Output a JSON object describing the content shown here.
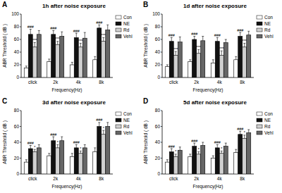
{
  "chart_data": [
    {
      "type": "bar",
      "panel_label": "A",
      "title": "1h after noise exposure",
      "x_label": "Frequency(Hz)",
      "y_label": "ABR Threshold ( dB )",
      "categories": [
        "click",
        "2k",
        "4k",
        "8k"
      ],
      "ylim": [
        0,
        100
      ],
      "yticks": [
        0,
        20,
        40,
        60,
        80,
        100
      ],
      "grid": false,
      "legend": "right",
      "series": [
        {
          "name": "Con",
          "color": "#ffffff",
          "values": [
            15,
            25,
            20,
            28
          ],
          "errors": [
            3,
            4,
            4,
            5
          ]
        },
        {
          "name": "NE",
          "color": "#111111",
          "values": [
            68,
            68,
            63,
            78
          ],
          "errors": [
            8,
            6,
            7,
            5
          ]
        },
        {
          "name": "Rd",
          "color": "#d0d0d0",
          "values": [
            48,
            52,
            48,
            57
          ],
          "errors": [
            7,
            5,
            6,
            6
          ]
        },
        {
          "name": "Vehl",
          "color": "#666666",
          "values": [
            68,
            65,
            62,
            75
          ],
          "errors": [
            6,
            7,
            9,
            8
          ]
        }
      ],
      "annotations": [
        {
          "category": "click",
          "series": "NE",
          "text": "###"
        },
        {
          "category": "click",
          "series": "Rd",
          "text": "***"
        },
        {
          "category": "2k",
          "series": "NE",
          "text": "###"
        },
        {
          "category": "2k",
          "series": "Rd",
          "text": "***"
        },
        {
          "category": "4k",
          "series": "NE",
          "text": "###"
        },
        {
          "category": "4k",
          "series": "Rd",
          "text": "***"
        },
        {
          "category": "8k",
          "series": "NE",
          "text": "###"
        },
        {
          "category": "8k",
          "series": "Rd",
          "text": "***"
        }
      ]
    },
    {
      "type": "bar",
      "panel_label": "B",
      "title": "1d after noise exposure",
      "x_label": "Frequency(Hz)",
      "y_label": "ABR Threshold ( dB )",
      "categories": [
        "click",
        "2k",
        "4k",
        "8k"
      ],
      "ylim": [
        0,
        100
      ],
      "yticks": [
        0,
        20,
        40,
        60,
        80,
        100
      ],
      "grid": false,
      "legend": "right",
      "series": [
        {
          "name": "Con",
          "color": "#ffffff",
          "values": [
            17,
            25,
            23,
            28
          ],
          "errors": [
            3,
            3,
            5,
            5
          ]
        },
        {
          "name": "NE",
          "color": "#111111",
          "values": [
            57,
            60,
            57,
            65
          ],
          "errors": [
            6,
            5,
            6,
            6
          ]
        },
        {
          "name": "Rd",
          "color": "#d0d0d0",
          "values": [
            35,
            38,
            35,
            48
          ],
          "errors": [
            6,
            6,
            7,
            6
          ]
        },
        {
          "name": "Vehl",
          "color": "#666666",
          "values": [
            56,
            58,
            55,
            67
          ],
          "errors": [
            8,
            7,
            5,
            6
          ]
        }
      ],
      "annotations": [
        {
          "category": "click",
          "series": "NE",
          "text": "###"
        },
        {
          "category": "click",
          "series": "Rd",
          "text": "***"
        },
        {
          "category": "2k",
          "series": "NE",
          "text": "###"
        },
        {
          "category": "2k",
          "series": "Rd",
          "text": "***"
        },
        {
          "category": "4k",
          "series": "NE",
          "text": "###"
        },
        {
          "category": "4k",
          "series": "Rd",
          "text": "***"
        },
        {
          "category": "8k",
          "series": "NE",
          "text": "###"
        },
        {
          "category": "8k",
          "series": "Rd",
          "text": "***"
        }
      ]
    },
    {
      "type": "bar",
      "panel_label": "C",
      "title": "3d after noise exposure",
      "x_label": "Frequency(Hz)",
      "y_label": "ABR Threshold ( dB )",
      "categories": [
        "click",
        "2k",
        "4k",
        "8k"
      ],
      "ylim": [
        0,
        80
      ],
      "yticks": [
        0,
        20,
        40,
        60,
        80
      ],
      "grid": false,
      "legend": "right",
      "series": [
        {
          "name": "Con",
          "color": "#ffffff",
          "values": [
            15,
            23,
            22,
            28
          ],
          "errors": [
            3,
            3,
            4,
            5
          ]
        },
        {
          "name": "NE",
          "color": "#111111",
          "values": [
            32,
            42,
            33,
            60
          ],
          "errors": [
            4,
            5,
            4,
            5
          ]
        },
        {
          "name": "Rd",
          "color": "#d0d0d0",
          "values": [
            28,
            33,
            26,
            50
          ],
          "errors": [
            3,
            4,
            3,
            5
          ]
        },
        {
          "name": "Vehl",
          "color": "#666666",
          "values": [
            33,
            42,
            33,
            60
          ],
          "errors": [
            4,
            5,
            4,
            5
          ]
        }
      ],
      "annotations": [
        {
          "category": "click",
          "series": "NE",
          "text": "###"
        },
        {
          "category": "click",
          "series": "Rd",
          "text": "*"
        },
        {
          "category": "2k",
          "series": "NE",
          "text": "###"
        },
        {
          "category": "2k",
          "series": "Rd",
          "text": "*"
        },
        {
          "category": "4k",
          "series": "NE",
          "text": "###"
        },
        {
          "category": "4k",
          "series": "Rd",
          "text": "*"
        },
        {
          "category": "8k",
          "series": "NE",
          "text": "###"
        },
        {
          "category": "8k",
          "series": "Rd",
          "text": "*"
        }
      ]
    },
    {
      "type": "bar",
      "panel_label": "D",
      "title": "5d after noise exposure",
      "x_label": "Frequency(Hz)",
      "y_label": "ABR Threshold ( dB )",
      "categories": [
        "click",
        "2k",
        "4k",
        "8k"
      ],
      "ylim": [
        0,
        80
      ],
      "yticks": [
        0,
        20,
        40,
        60,
        80
      ],
      "grid": false,
      "legend": "right",
      "series": [
        {
          "name": "Con",
          "color": "#ffffff",
          "values": [
            15,
            22,
            20,
            27
          ],
          "errors": [
            3,
            3,
            3,
            4
          ]
        },
        {
          "name": "NE",
          "color": "#111111",
          "values": [
            28,
            35,
            33,
            50
          ],
          "errors": [
            4,
            4,
            4,
            4
          ]
        },
        {
          "name": "Rd",
          "color": "#d0d0d0",
          "values": [
            22,
            25,
            26,
            45
          ],
          "errors": [
            3,
            3,
            3,
            4
          ]
        },
        {
          "name": "Vehl",
          "color": "#666666",
          "values": [
            30,
            36,
            35,
            52
          ],
          "errors": [
            4,
            4,
            4,
            4
          ]
        }
      ],
      "annotations": [
        {
          "category": "click",
          "series": "NE",
          "text": "###"
        },
        {
          "category": "click",
          "series": "Rd",
          "text": "*"
        },
        {
          "category": "2k",
          "series": "NE",
          "text": "###"
        },
        {
          "category": "2k",
          "series": "Rd",
          "text": "*"
        },
        {
          "category": "4k",
          "series": "NE",
          "text": "###"
        },
        {
          "category": "4k",
          "series": "Rd",
          "text": "*"
        },
        {
          "category": "8k",
          "series": "NE",
          "text": "###"
        },
        {
          "category": "8k",
          "series": "Rd",
          "text": "*"
        }
      ]
    }
  ]
}
